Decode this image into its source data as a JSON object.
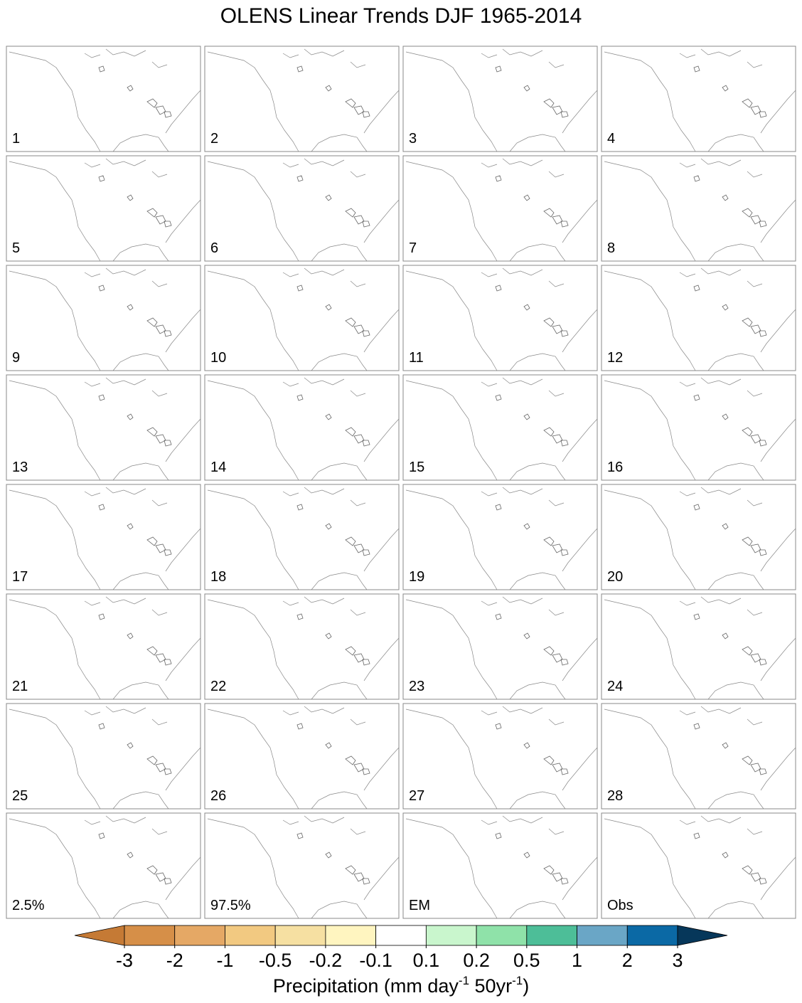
{
  "title": "OLENS Linear Trends DJF 1965-2014",
  "panel_labels": [
    "1",
    "2",
    "3",
    "4",
    "5",
    "6",
    "7",
    "8",
    "9",
    "10",
    "11",
    "12",
    "13",
    "14",
    "15",
    "16",
    "17",
    "18",
    "19",
    "20",
    "21",
    "22",
    "23",
    "24",
    "25",
    "26",
    "27",
    "28",
    "2.5%",
    "97.5%",
    "EM",
    "Obs"
  ],
  "colorbar": {
    "colors": [
      "#c57a35",
      "#d68f48",
      "#e5a865",
      "#f2c981",
      "#f6e0a2",
      "#fff5c0",
      "#ffffff",
      "#c9f6cd",
      "#8fe2a9",
      "#4dbe98",
      "#6aa6c6",
      "#0b69a5",
      "#06375a"
    ],
    "ticks": [
      -3,
      -2,
      -1,
      -0.5,
      -0.2,
      -0.1,
      0.1,
      0.2,
      0.5,
      1,
      2,
      3
    ],
    "label_parts": [
      "Precipitation (mm day",
      "-1",
      " 50yr",
      "-1",
      ")"
    ]
  }
}
